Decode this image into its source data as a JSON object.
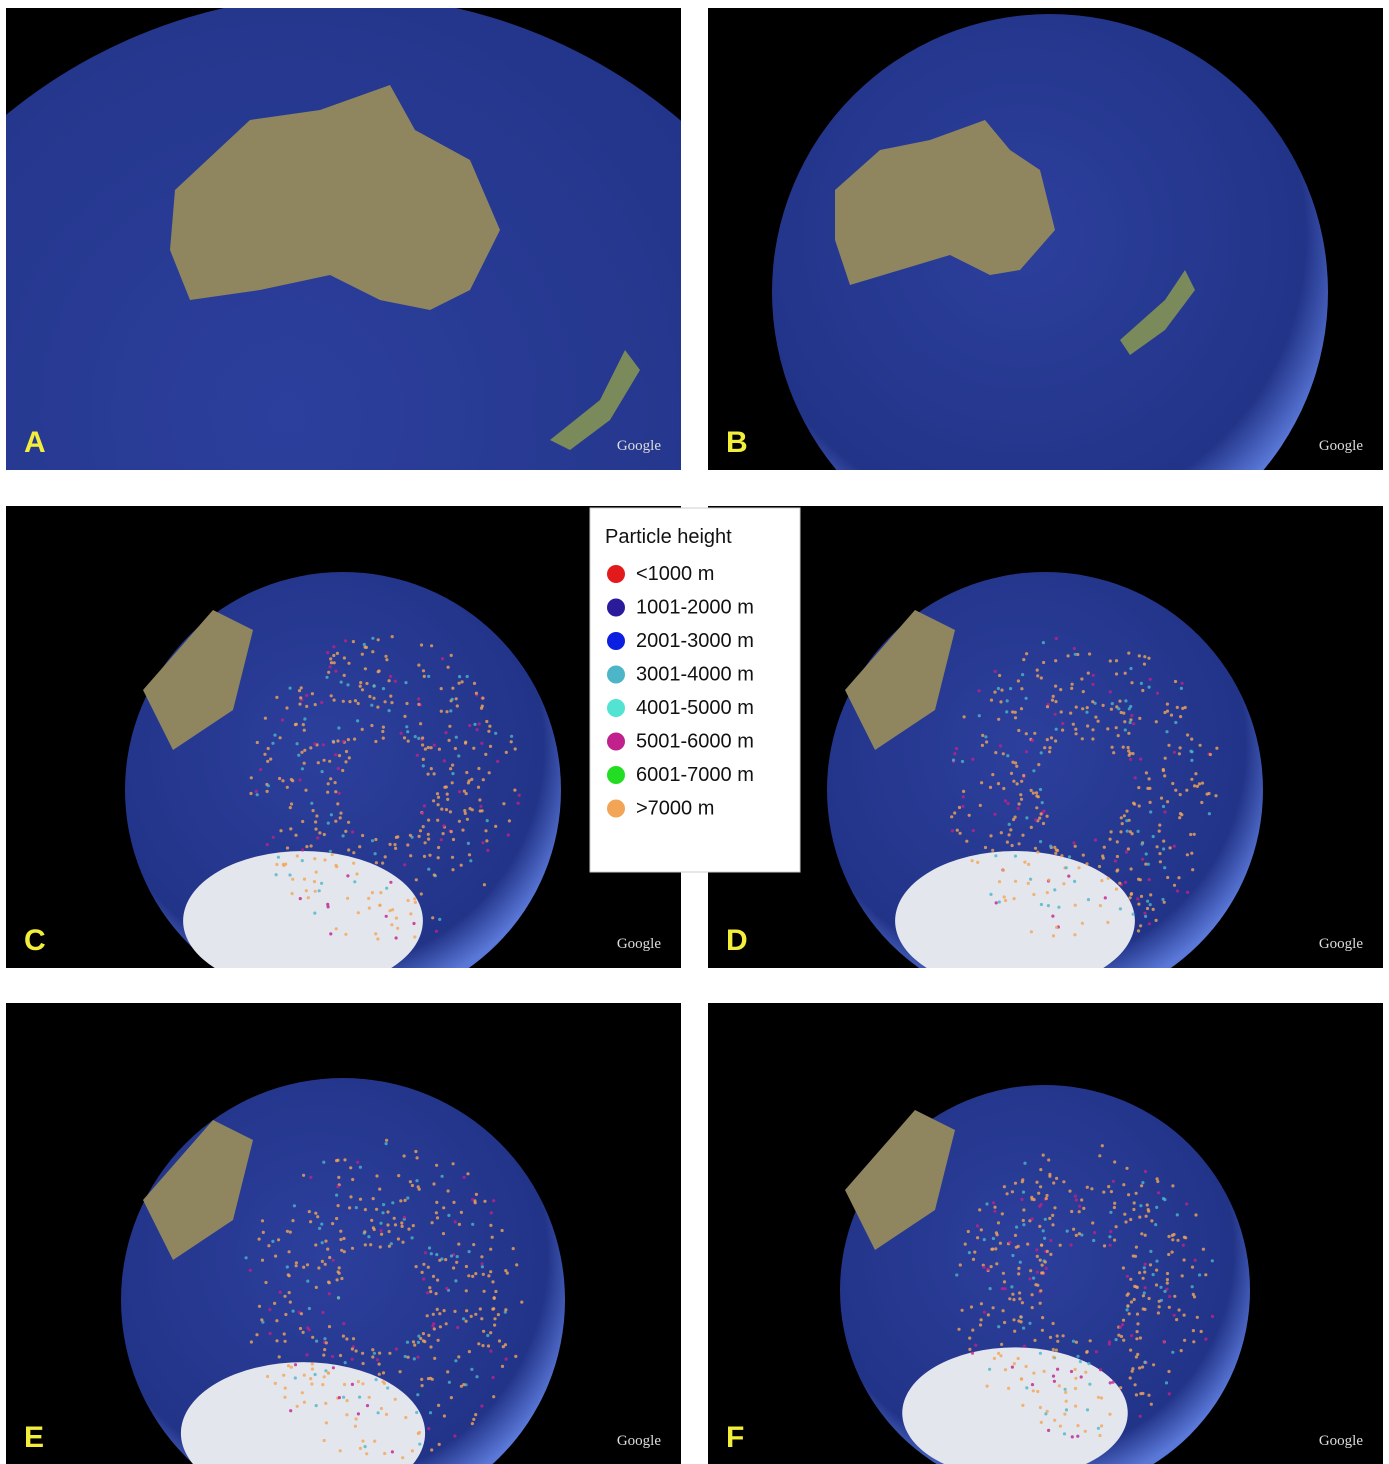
{
  "panels": [
    {
      "label": "A",
      "watermark": "Google"
    },
    {
      "label": "B",
      "watermark": "Google"
    },
    {
      "label": "C",
      "watermark": "Google"
    },
    {
      "label": "D",
      "watermark": "Google"
    },
    {
      "label": "E",
      "watermark": "Google"
    },
    {
      "label": "F",
      "watermark": "Google"
    }
  ],
  "legend": {
    "title": "Particle height",
    "items": [
      {
        "label": "<1000 m",
        "color": "#e31a1c"
      },
      {
        "label": "1001-2000 m",
        "color": "#2a1b9a"
      },
      {
        "label": "2001-3000 m",
        "color": "#0b1fe0"
      },
      {
        "label": "3001-4000 m",
        "color": "#4cb6c8"
      },
      {
        "label": "4001-5000 m",
        "color": "#52e3d2"
      },
      {
        "label": "5001-6000 m",
        "color": "#c0218c"
      },
      {
        "label": "6001-7000 m",
        "color": "#22dd22"
      },
      {
        "label": ">7000 m",
        "color": "#f2a556"
      }
    ]
  }
}
